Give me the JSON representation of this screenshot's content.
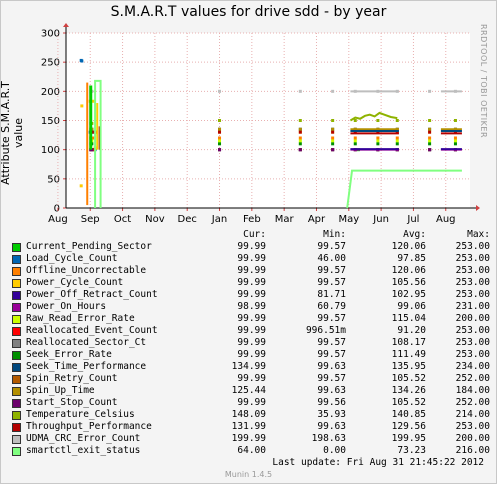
{
  "chart_data": {
    "type": "line",
    "title": "S.M.A.R.T values for drive sdd - by year",
    "ylabel": "Attribute S.M.A.R.T value",
    "xlabel": "",
    "ylim": [
      0,
      300
    ],
    "yticks": [
      0,
      50,
      100,
      150,
      200,
      250,
      300
    ],
    "x_tick_labels": [
      "Aug",
      "Sep",
      "Oct",
      "Nov",
      "Dec",
      "Jan",
      "Feb",
      "Mar",
      "Apr",
      "May",
      "Jun",
      "Jul",
      "Aug"
    ],
    "grid": true,
    "legend_position": "bottom",
    "series": [
      {
        "name": "Current_Pending_Sector",
        "color": "#00cc00",
        "clusters": [
          [
            1.02,
            120
          ],
          [
            1.03,
            100
          ],
          [
            1.05,
            120
          ],
          [
            1.12,
            100
          ],
          [
            1.15,
            130
          ],
          [
            9.3,
            100
          ],
          [
            9.9,
            100
          ],
          [
            10.5,
            100
          ],
          [
            11.5,
            100
          ],
          [
            12.3,
            100
          ]
        ]
      },
      {
        "name": "Load_Cycle_Count",
        "color": "#0066b3",
        "clusters": [
          [
            0.72,
            253
          ],
          [
            0.74,
            252
          ],
          [
            1.0,
            130
          ],
          [
            1.05,
            100
          ],
          [
            1.1,
            130
          ],
          [
            1.15,
            100
          ],
          [
            5.0,
            100
          ],
          [
            7.5,
            100
          ],
          [
            8.5,
            100
          ],
          [
            9.9,
            100
          ],
          [
            10.5,
            100
          ],
          [
            11.5,
            100
          ],
          [
            12.3,
            100
          ]
        ]
      },
      {
        "name": "Offline_Uncorrectable",
        "color": "#ff8000",
        "clusters": [
          [
            1.02,
            120
          ],
          [
            1.05,
            120
          ],
          [
            1.08,
            120
          ],
          [
            5.0,
            120
          ],
          [
            7.5,
            120
          ],
          [
            8.5,
            120
          ],
          [
            9.2,
            120
          ],
          [
            9.9,
            120
          ],
          [
            10.5,
            120
          ],
          [
            11.5,
            120
          ],
          [
            12.3,
            120
          ]
        ]
      },
      {
        "name": "Power_Cycle_Count",
        "color": "#ffcc00",
        "clusters": [
          [
            0.74,
            175
          ],
          [
            0.72,
            38
          ],
          [
            1.0,
            183
          ],
          [
            1.05,
            100
          ],
          [
            1.1,
            183
          ],
          [
            1.15,
            103
          ],
          [
            5.0,
            130
          ],
          [
            7.5,
            130
          ],
          [
            8.5,
            130
          ],
          [
            9.2,
            130
          ],
          [
            9.9,
            130
          ],
          [
            10.5,
            130
          ],
          [
            11.5,
            130
          ],
          [
            12.3,
            130
          ]
        ]
      },
      {
        "name": "Power_Off_Retract_Count",
        "color": "#330099",
        "clusters": [
          [
            1.02,
            100
          ],
          [
            1.05,
            100
          ],
          [
            1.1,
            100
          ],
          [
            5.0,
            100
          ],
          [
            7.5,
            100
          ],
          [
            8.5,
            100
          ],
          [
            9.2,
            100
          ],
          [
            9.9,
            100
          ],
          [
            10.5,
            100
          ],
          [
            11.5,
            100
          ],
          [
            12.3,
            100
          ]
        ]
      },
      {
        "name": "Power_On_Hours",
        "color": "#990099",
        "clusters": [
          [
            1.02,
            100
          ],
          [
            1.05,
            100
          ],
          [
            5.0,
            100
          ],
          [
            7.5,
            100
          ],
          [
            8.5,
            100
          ],
          [
            9.2,
            100
          ],
          [
            9.9,
            100
          ],
          [
            10.5,
            100
          ],
          [
            11.5,
            100
          ],
          [
            12.3,
            100
          ]
        ]
      },
      {
        "name": "Raw_Read_Error_Rate",
        "color": "#ccff00",
        "clusters": [
          [
            1.02,
            115
          ],
          [
            1.05,
            115
          ],
          [
            5.0,
            115
          ],
          [
            7.5,
            115
          ],
          [
            8.5,
            115
          ],
          [
            9.2,
            115
          ],
          [
            9.9,
            115
          ],
          [
            10.5,
            115
          ],
          [
            11.5,
            115
          ],
          [
            12.3,
            115
          ]
        ]
      },
      {
        "name": "Reallocated_Event_Count",
        "color": "#ff0000",
        "clusters": [
          [
            1.12,
            100
          ],
          [
            1.15,
            130
          ]
        ]
      },
      {
        "name": "Reallocated_Sector_Ct",
        "color": "#808080",
        "clusters": [
          [
            1.02,
            100
          ],
          [
            1.05,
            100
          ],
          [
            5.0,
            100
          ],
          [
            7.5,
            100
          ],
          [
            8.5,
            100
          ],
          [
            9.2,
            100
          ],
          [
            9.9,
            100
          ],
          [
            10.5,
            100
          ],
          [
            11.5,
            100
          ],
          [
            12.3,
            100
          ]
        ]
      },
      {
        "name": "Seek_Error_Rate",
        "color": "#008f00",
        "clusters": [
          [
            1.02,
            110
          ],
          [
            1.05,
            110
          ],
          [
            5.0,
            110
          ],
          [
            7.5,
            110
          ],
          [
            8.5,
            110
          ],
          [
            9.2,
            110
          ],
          [
            9.9,
            110
          ],
          [
            10.5,
            110
          ],
          [
            11.5,
            110
          ],
          [
            12.3,
            110
          ]
        ]
      },
      {
        "name": "Seek_Time_Performance",
        "color": "#00487d",
        "clusters": [
          [
            1.02,
            135
          ],
          [
            1.05,
            135
          ],
          [
            5.0,
            135
          ],
          [
            7.5,
            135
          ],
          [
            8.5,
            135
          ],
          [
            9.2,
            135
          ],
          [
            9.9,
            135
          ],
          [
            10.5,
            135
          ],
          [
            11.5,
            135
          ],
          [
            12.3,
            135
          ]
        ]
      },
      {
        "name": "Spin_Retry_Count",
        "color": "#b35a00",
        "clusters": [
          [
            1.02,
            100
          ],
          [
            1.05,
            100
          ],
          [
            5.0,
            100
          ],
          [
            7.5,
            100
          ],
          [
            8.5,
            100
          ],
          [
            9.2,
            100
          ],
          [
            9.9,
            100
          ],
          [
            10.5,
            100
          ],
          [
            11.5,
            100
          ],
          [
            12.3,
            100
          ]
        ]
      },
      {
        "name": "Spin_Up_Time",
        "color": "#b38f00",
        "clusters": [
          [
            1.02,
            135
          ],
          [
            1.05,
            135
          ],
          [
            5.0,
            135
          ],
          [
            7.5,
            135
          ],
          [
            8.5,
            135
          ],
          [
            9.2,
            135
          ],
          [
            9.9,
            135
          ],
          [
            10.5,
            135
          ],
          [
            11.5,
            135
          ],
          [
            12.3,
            135
          ]
        ]
      },
      {
        "name": "Start_Stop_Count",
        "color": "#6b006b",
        "clusters": [
          [
            1.02,
            100
          ],
          [
            1.05,
            100
          ],
          [
            5.0,
            100
          ],
          [
            7.5,
            100
          ],
          [
            8.5,
            100
          ],
          [
            9.2,
            100
          ],
          [
            9.9,
            100
          ],
          [
            10.5,
            100
          ],
          [
            11.5,
            100
          ],
          [
            12.3,
            100
          ]
        ]
      },
      {
        "name": "Temperature_Celsius",
        "color": "#8fb300",
        "clusters": [
          [
            1.02,
            145
          ],
          [
            1.05,
            145
          ],
          [
            5.0,
            150
          ],
          [
            7.5,
            150
          ],
          [
            8.5,
            150
          ],
          [
            9.2,
            150
          ],
          [
            9.9,
            150
          ],
          [
            10.5,
            150
          ],
          [
            11.5,
            150
          ],
          [
            12.3,
            150
          ]
        ]
      },
      {
        "name": "Throughput_Performance",
        "color": "#b30000",
        "clusters": [
          [
            1.02,
            130
          ],
          [
            1.05,
            130
          ],
          [
            5.0,
            130
          ],
          [
            7.5,
            130
          ],
          [
            8.5,
            130
          ],
          [
            9.2,
            130
          ],
          [
            9.9,
            130
          ],
          [
            10.5,
            130
          ],
          [
            11.5,
            130
          ],
          [
            12.3,
            130
          ]
        ]
      },
      {
        "name": "UDMA_CRC_Error_Count",
        "color": "#bebebe",
        "clusters": [
          [
            1.02,
            200
          ],
          [
            1.05,
            200
          ],
          [
            5.0,
            200
          ],
          [
            7.5,
            200
          ],
          [
            8.5,
            200
          ],
          [
            9.2,
            200
          ],
          [
            9.9,
            200
          ],
          [
            10.5,
            200
          ],
          [
            11.5,
            200
          ],
          [
            12.3,
            200
          ]
        ]
      },
      {
        "name": "smartctl_exit_status",
        "color": "#80ff80",
        "clusters": []
      }
    ],
    "features": {
      "sep_block_x": [
        1.0,
        1.2
      ],
      "green_exit_status": [
        [
          1.15,
          0
        ],
        [
          1.15,
          218
        ],
        [
          1.32,
          218
        ],
        [
          1.32,
          0
        ]
      ],
      "temp_may_series": [
        [
          9.05,
          150
        ],
        [
          9.2,
          155
        ],
        [
          9.35,
          153
        ],
        [
          9.5,
          158
        ],
        [
          9.65,
          160
        ],
        [
          9.8,
          157
        ],
        [
          9.95,
          163
        ],
        [
          10.1,
          160
        ],
        [
          10.3,
          156
        ],
        [
          10.5,
          154
        ]
      ],
      "exit_status_after_apr": [
        [
          8.95,
          0
        ],
        [
          9.1,
          64
        ],
        [
          12.5,
          64
        ]
      ]
    }
  },
  "legend": {
    "header": {
      "cur": "Cur:",
      "min": "Min:",
      "avg": "Avg:",
      "max": "Max:"
    },
    "rows": [
      {
        "name": "Current_Pending_Sector",
        "color": "#00cc00",
        "cur": "99.99",
        "min": "99.57",
        "avg": "120.06",
        "max": "253.00"
      },
      {
        "name": "Load_Cycle_Count",
        "color": "#0066b3",
        "cur": "99.99",
        "min": "46.00",
        "avg": "97.85",
        "max": "253.00"
      },
      {
        "name": "Offline_Uncorrectable",
        "color": "#ff8000",
        "cur": "99.99",
        "min": "99.57",
        "avg": "120.06",
        "max": "253.00"
      },
      {
        "name": "Power_Cycle_Count",
        "color": "#ffcc00",
        "cur": "99.99",
        "min": "99.57",
        "avg": "105.56",
        "max": "253.00"
      },
      {
        "name": "Power_Off_Retract_Count",
        "color": "#330099",
        "cur": "99.99",
        "min": "81.71",
        "avg": "102.95",
        "max": "253.00"
      },
      {
        "name": "Power_On_Hours",
        "color": "#990099",
        "cur": "98.99",
        "min": "60.79",
        "avg": "99.06",
        "max": "231.00"
      },
      {
        "name": "Raw_Read_Error_Rate",
        "color": "#ccff00",
        "cur": "99.99",
        "min": "99.57",
        "avg": "115.04",
        "max": "200.00"
      },
      {
        "name": "Reallocated_Event_Count",
        "color": "#ff0000",
        "cur": "99.99",
        "min": "996.51m",
        "avg": "91.20",
        "max": "253.00"
      },
      {
        "name": "Reallocated_Sector_Ct",
        "color": "#808080",
        "cur": "99.99",
        "min": "99.57",
        "avg": "108.17",
        "max": "253.00"
      },
      {
        "name": "Seek_Error_Rate",
        "color": "#008f00",
        "cur": "99.99",
        "min": "99.57",
        "avg": "111.49",
        "max": "253.00"
      },
      {
        "name": "Seek_Time_Performance",
        "color": "#00487d",
        "cur": "134.99",
        "min": "99.63",
        "avg": "135.95",
        "max": "234.00"
      },
      {
        "name": "Spin_Retry_Count",
        "color": "#b35a00",
        "cur": "99.99",
        "min": "99.57",
        "avg": "105.52",
        "max": "252.00"
      },
      {
        "name": "Spin_Up_Time",
        "color": "#b38f00",
        "cur": "125.44",
        "min": "99.63",
        "avg": "134.26",
        "max": "184.00"
      },
      {
        "name": "Start_Stop_Count",
        "color": "#6b006b",
        "cur": "99.99",
        "min": "99.56",
        "avg": "105.52",
        "max": "252.00"
      },
      {
        "name": "Temperature_Celsius",
        "color": "#8fb300",
        "cur": "148.09",
        "min": "35.93",
        "avg": "140.85",
        "max": "214.00"
      },
      {
        "name": "Throughput_Performance",
        "color": "#b30000",
        "cur": "131.99",
        "min": "99.63",
        "avg": "129.56",
        "max": "253.00"
      },
      {
        "name": "UDMA_CRC_Error_Count",
        "color": "#bebebe",
        "cur": "199.99",
        "min": "198.63",
        "avg": "199.95",
        "max": "200.00"
      },
      {
        "name": "smartctl_exit_status",
        "color": "#80ff80",
        "cur": "64.00",
        "min": "0.00",
        "avg": "73.23",
        "max": "216.00"
      }
    ]
  },
  "side_text": "RRDTOOL / TOBI OETIKER",
  "last_update": "Last update:  Fri Aug 31 21:45:22 2012",
  "footer": "Munin 1.4.5"
}
